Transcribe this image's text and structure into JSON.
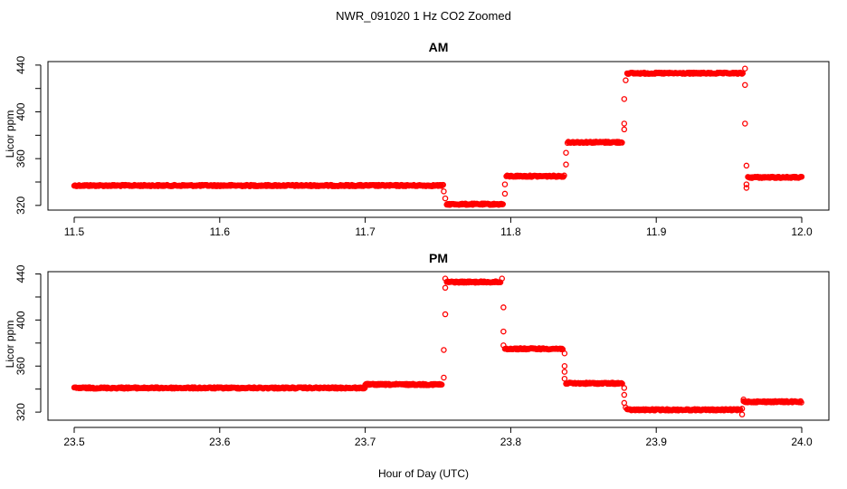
{
  "figure_title": "NWR_091020  1 Hz CO2 Zoomed",
  "xlabel": "Hour of Day (UTC)",
  "colors": {
    "marker": "#ff0000",
    "axis": "#000000"
  },
  "chart_data": [
    {
      "type": "scatter",
      "title": "AM",
      "ylabel": "Licor ppm",
      "xlim": [
        11.5,
        12.0
      ],
      "ylim": [
        316,
        443
      ],
      "xticks": [
        11.5,
        11.6,
        11.7,
        11.8,
        11.9,
        12.0
      ],
      "xtick_labels": [
        "11.5",
        "11.6",
        "11.7",
        "11.8",
        "11.9",
        "12.0"
      ],
      "yticks": [
        320,
        360,
        400,
        440
      ],
      "ytick_labels": [
        "320",
        "360",
        "400",
        "440"
      ],
      "segments": [
        {
          "x0": 11.5,
          "x1": 11.754,
          "y": 337
        },
        {
          "x0": 11.756,
          "x1": 11.795,
          "y": 321
        },
        {
          "x0": 11.797,
          "x1": 11.837,
          "y": 345
        },
        {
          "x0": 11.839,
          "x1": 11.877,
          "y": 374
        },
        {
          "x0": 11.88,
          "x1": 11.96,
          "y": 433
        },
        {
          "x0": 11.963,
          "x1": 12.0,
          "y": 344
        }
      ],
      "transition_points": [
        {
          "x": 11.754,
          "y": 332
        },
        {
          "x": 11.755,
          "y": 326
        },
        {
          "x": 11.796,
          "y": 330
        },
        {
          "x": 11.796,
          "y": 338
        },
        {
          "x": 11.838,
          "x_note": "",
          "y": 355
        },
        {
          "x": 11.838,
          "y": 365
        },
        {
          "x": 11.878,
          "y": 385
        },
        {
          "x": 11.878,
          "y": 390
        },
        {
          "x": 11.878,
          "y": 411
        },
        {
          "x": 11.879,
          "y": 427
        },
        {
          "x": 11.961,
          "y": 437
        },
        {
          "x": 11.961,
          "y": 423
        },
        {
          "x": 11.961,
          "y": 390
        },
        {
          "x": 11.962,
          "y": 354
        },
        {
          "x": 11.962,
          "y": 335
        },
        {
          "x": 11.962,
          "y": 338
        }
      ]
    },
    {
      "type": "scatter",
      "title": "PM",
      "ylabel": "Licor ppm",
      "xlim": [
        23.5,
        24.0
      ],
      "ylim": [
        313,
        442
      ],
      "xticks": [
        23.5,
        23.6,
        23.7,
        23.8,
        23.9,
        24.0
      ],
      "xtick_labels": [
        "23.5",
        "23.6",
        "23.7",
        "23.8",
        "23.9",
        "24.0"
      ],
      "yticks": [
        320,
        360,
        400,
        440
      ],
      "ytick_labels": [
        "320",
        "360",
        "400",
        "440"
      ],
      "segments": [
        {
          "x0": 23.5,
          "x1": 23.7,
          "y": 341
        },
        {
          "x0": 23.7,
          "x1": 23.753,
          "y": 344
        },
        {
          "x0": 23.756,
          "x1": 23.793,
          "y": 433
        },
        {
          "x0": 23.796,
          "x1": 23.836,
          "y": 375
        },
        {
          "x0": 23.838,
          "x1": 23.877,
          "y": 345
        },
        {
          "x0": 23.88,
          "x1": 23.958,
          "y": 322
        },
        {
          "x0": 23.96,
          "x1": 24.0,
          "y": 329
        }
      ],
      "transition_points": [
        {
          "x": 23.754,
          "y": 350
        },
        {
          "x": 23.754,
          "y": 374
        },
        {
          "x": 23.755,
          "y": 405
        },
        {
          "x": 23.755,
          "y": 428
        },
        {
          "x": 23.755,
          "y": 436
        },
        {
          "x": 23.794,
          "y": 436
        },
        {
          "x": 23.795,
          "y": 411
        },
        {
          "x": 23.795,
          "y": 390
        },
        {
          "x": 23.795,
          "y": 378
        },
        {
          "x": 23.837,
          "y": 371
        },
        {
          "x": 23.837,
          "y": 360
        },
        {
          "x": 23.837,
          "y": 355
        },
        {
          "x": 23.837,
          "y": 349
        },
        {
          "x": 23.878,
          "y": 341
        },
        {
          "x": 23.878,
          "y": 335
        },
        {
          "x": 23.878,
          "y": 328
        },
        {
          "x": 23.879,
          "y": 324
        },
        {
          "x": 23.959,
          "y": 318
        },
        {
          "x": 23.959,
          "y": 323
        },
        {
          "x": 23.96,
          "y": 331
        }
      ]
    }
  ]
}
